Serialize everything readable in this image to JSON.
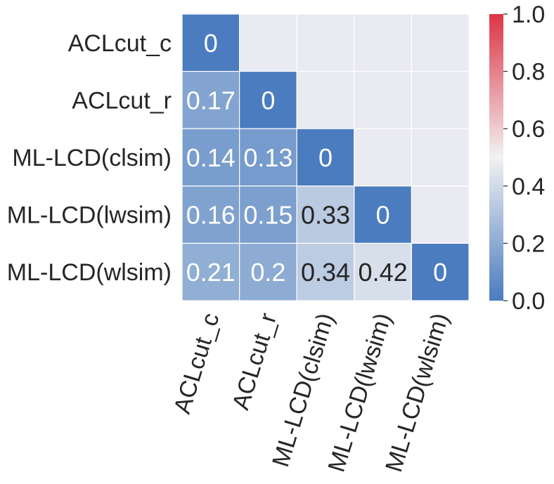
{
  "chart_data": {
    "type": "heatmap",
    "title": "",
    "xlabel": "",
    "ylabel": "",
    "row_labels": [
      "ACLcut_c",
      "ACLcut_r",
      "ML-LCD(clsim)",
      "ML-LCD(lwsim)",
      "ML-LCD(wlsim)"
    ],
    "col_labels": [
      "ACLcut_c",
      "ACLcut_r",
      "ML-LCD(clsim)",
      "ML-LCD(lwsim)",
      "ML-LCD(wlsim)"
    ],
    "values": [
      [
        0,
        null,
        null,
        null,
        null
      ],
      [
        0.17,
        0,
        null,
        null,
        null
      ],
      [
        0.14,
        0.13,
        0,
        null,
        null
      ],
      [
        0.16,
        0.15,
        0.33,
        0,
        null
      ],
      [
        0.21,
        0.2,
        0.34,
        0.42,
        0
      ]
    ],
    "value_labels": [
      [
        "0",
        "",
        "",
        "",
        ""
      ],
      [
        "0.17",
        "0",
        "",
        "",
        ""
      ],
      [
        "0.14",
        "0.13",
        "0",
        "",
        ""
      ],
      [
        "0.16",
        "0.15",
        "0.33",
        "0",
        ""
      ],
      [
        "0.21",
        "0.2",
        "0.34",
        "0.42",
        "0"
      ]
    ],
    "masked": "upper-triangle",
    "colorbar": {
      "range": [
        0,
        1
      ],
      "ticks": [
        "0.0",
        "0.2",
        "0.4",
        "0.6",
        "0.8",
        "1.0"
      ],
      "colors": [
        "#4a7cbf",
        "#f2f2f2",
        "#dc3545"
      ]
    },
    "mask_color": "#eaeaf2",
    "grid": false,
    "legend": "right"
  }
}
